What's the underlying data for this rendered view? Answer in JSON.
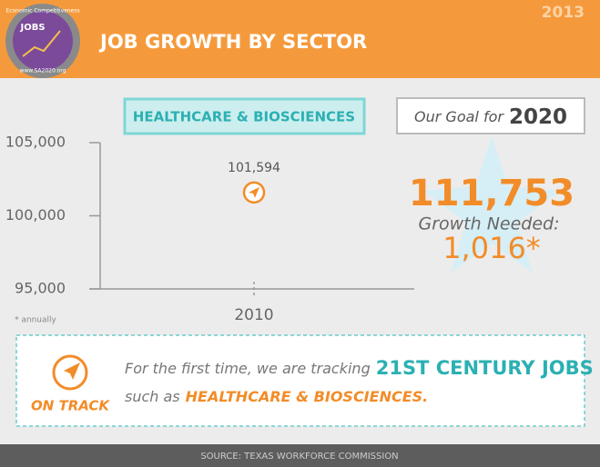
{
  "header": {
    "title": "JOB GROWTH BY SECTOR",
    "year": "2013",
    "logo": {
      "arc_text": "Economic Competitiveness",
      "label": "JOBS",
      "url": "www.SA2020.org"
    }
  },
  "chart_data": {
    "type": "point",
    "subtitle": "HEALTHCARE & BIOSCIENCES",
    "categories": [
      "2010"
    ],
    "values": [
      101594
    ],
    "value_labels": [
      "101,594"
    ],
    "color": "#f28c28",
    "ylim": [
      95000,
      105000
    ],
    "yticks": [
      {
        "value": 95000,
        "label": "95,000"
      },
      {
        "value": 100000,
        "label": "100,000"
      },
      {
        "value": 105000,
        "label": "105,000"
      }
    ],
    "note": "* annually"
  },
  "goal": {
    "label": "Our Goal for",
    "year": "2020",
    "target": "111,753",
    "growth_label": "Growth Needed:",
    "growth": "1,016*"
  },
  "status": {
    "badge": "ON TRACK",
    "text_1": "For the first time, we are tracking",
    "highlight_1": "21ST CENTURY JOBS",
    "text_2": "such as",
    "highlight_2": "HEALTHCARE & BIOSCIENCES."
  },
  "footer": {
    "source": "SOURCE: TEXAS WORKFORCE COMMISSION"
  }
}
